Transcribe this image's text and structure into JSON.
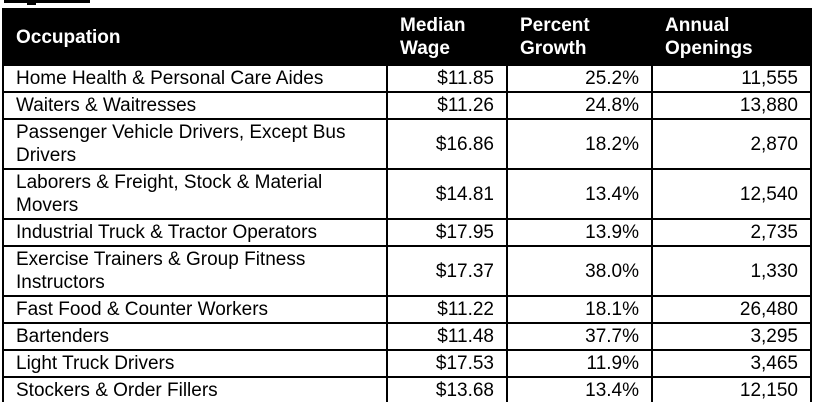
{
  "colors": {
    "header_bg": "#000000",
    "header_text": "#ffffff",
    "body_bg": "#ffffff",
    "body_text": "#000000",
    "border": "#000000"
  },
  "chart_data": {
    "type": "table",
    "columns": [
      "Occupation",
      "Median Wage",
      "Percent Growth",
      "Annual Openings"
    ],
    "rows": [
      [
        "Home Health & Personal Care Aides",
        "$11.85",
        "25.2%",
        "11,555"
      ],
      [
        "Waiters & Waitresses",
        "$11.26",
        "24.8%",
        "13,880"
      ],
      [
        "Passenger Vehicle Drivers, Except Bus Drivers",
        "$16.86",
        "18.2%",
        "2,870"
      ],
      [
        "Laborers & Freight, Stock & Material Movers",
        "$14.81",
        "13.4%",
        "12,540"
      ],
      [
        "Industrial Truck & Tractor Operators",
        "$17.95",
        "13.9%",
        "2,735"
      ],
      [
        "Exercise Trainers & Group Fitness Instructors",
        "$17.37",
        "38.0%",
        "1,330"
      ],
      [
        "Fast Food & Counter Workers",
        "$11.22",
        "18.1%",
        "26,480"
      ],
      [
        "Bartenders",
        "$11.48",
        "37.7%",
        "3,295"
      ],
      [
        "Light Truck Drivers",
        "$17.53",
        "11.9%",
        "3,465"
      ],
      [
        "Stockers & Order Fillers",
        "$13.68",
        "13.4%",
        "12,150"
      ]
    ]
  }
}
